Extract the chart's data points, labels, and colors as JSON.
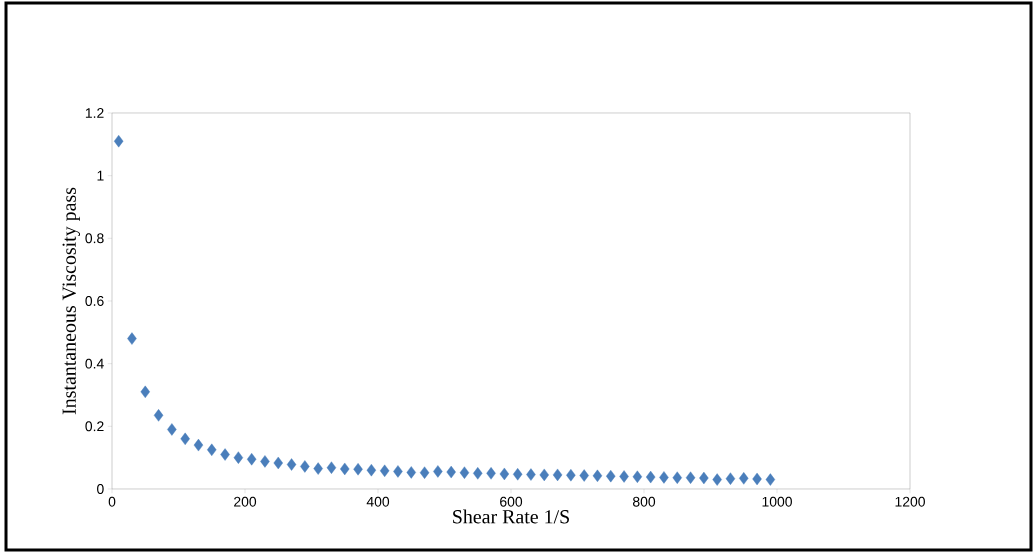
{
  "chart_data": {
    "type": "scatter",
    "xlabel": "Shear Rate 1/S",
    "ylabel": "Instantaneous Viscosity pass",
    "x": [
      10,
      30,
      50,
      70,
      90,
      110,
      130,
      150,
      170,
      190,
      210,
      230,
      250,
      270,
      290,
      310,
      330,
      350,
      370,
      390,
      410,
      430,
      450,
      470,
      490,
      510,
      530,
      550,
      570,
      590,
      610,
      630,
      650,
      670,
      690,
      710,
      730,
      750,
      770,
      790,
      810,
      830,
      850,
      870,
      890,
      910,
      930,
      950,
      970,
      990
    ],
    "values": [
      1.11,
      0.48,
      0.31,
      0.235,
      0.19,
      0.16,
      0.14,
      0.125,
      0.11,
      0.1,
      0.095,
      0.088,
      0.083,
      0.078,
      0.072,
      0.065,
      0.068,
      0.064,
      0.063,
      0.06,
      0.058,
      0.056,
      0.053,
      0.052,
      0.056,
      0.054,
      0.052,
      0.05,
      0.05,
      0.048,
      0.047,
      0.046,
      0.045,
      0.045,
      0.044,
      0.043,
      0.042,
      0.041,
      0.04,
      0.039,
      0.038,
      0.037,
      0.036,
      0.036,
      0.035,
      0.03,
      0.033,
      0.034,
      0.032,
      0.03
    ],
    "color": "#4a7ebb",
    "marker": "diamond",
    "grid": false,
    "xlim": [
      0,
      1200
    ],
    "xticks": [
      0,
      200,
      400,
      600,
      800,
      1000,
      1200
    ],
    "ylim": [
      0,
      1.2
    ],
    "yticks": [
      0,
      0.2,
      0.4,
      0.6,
      0.8,
      1,
      1.2
    ]
  }
}
